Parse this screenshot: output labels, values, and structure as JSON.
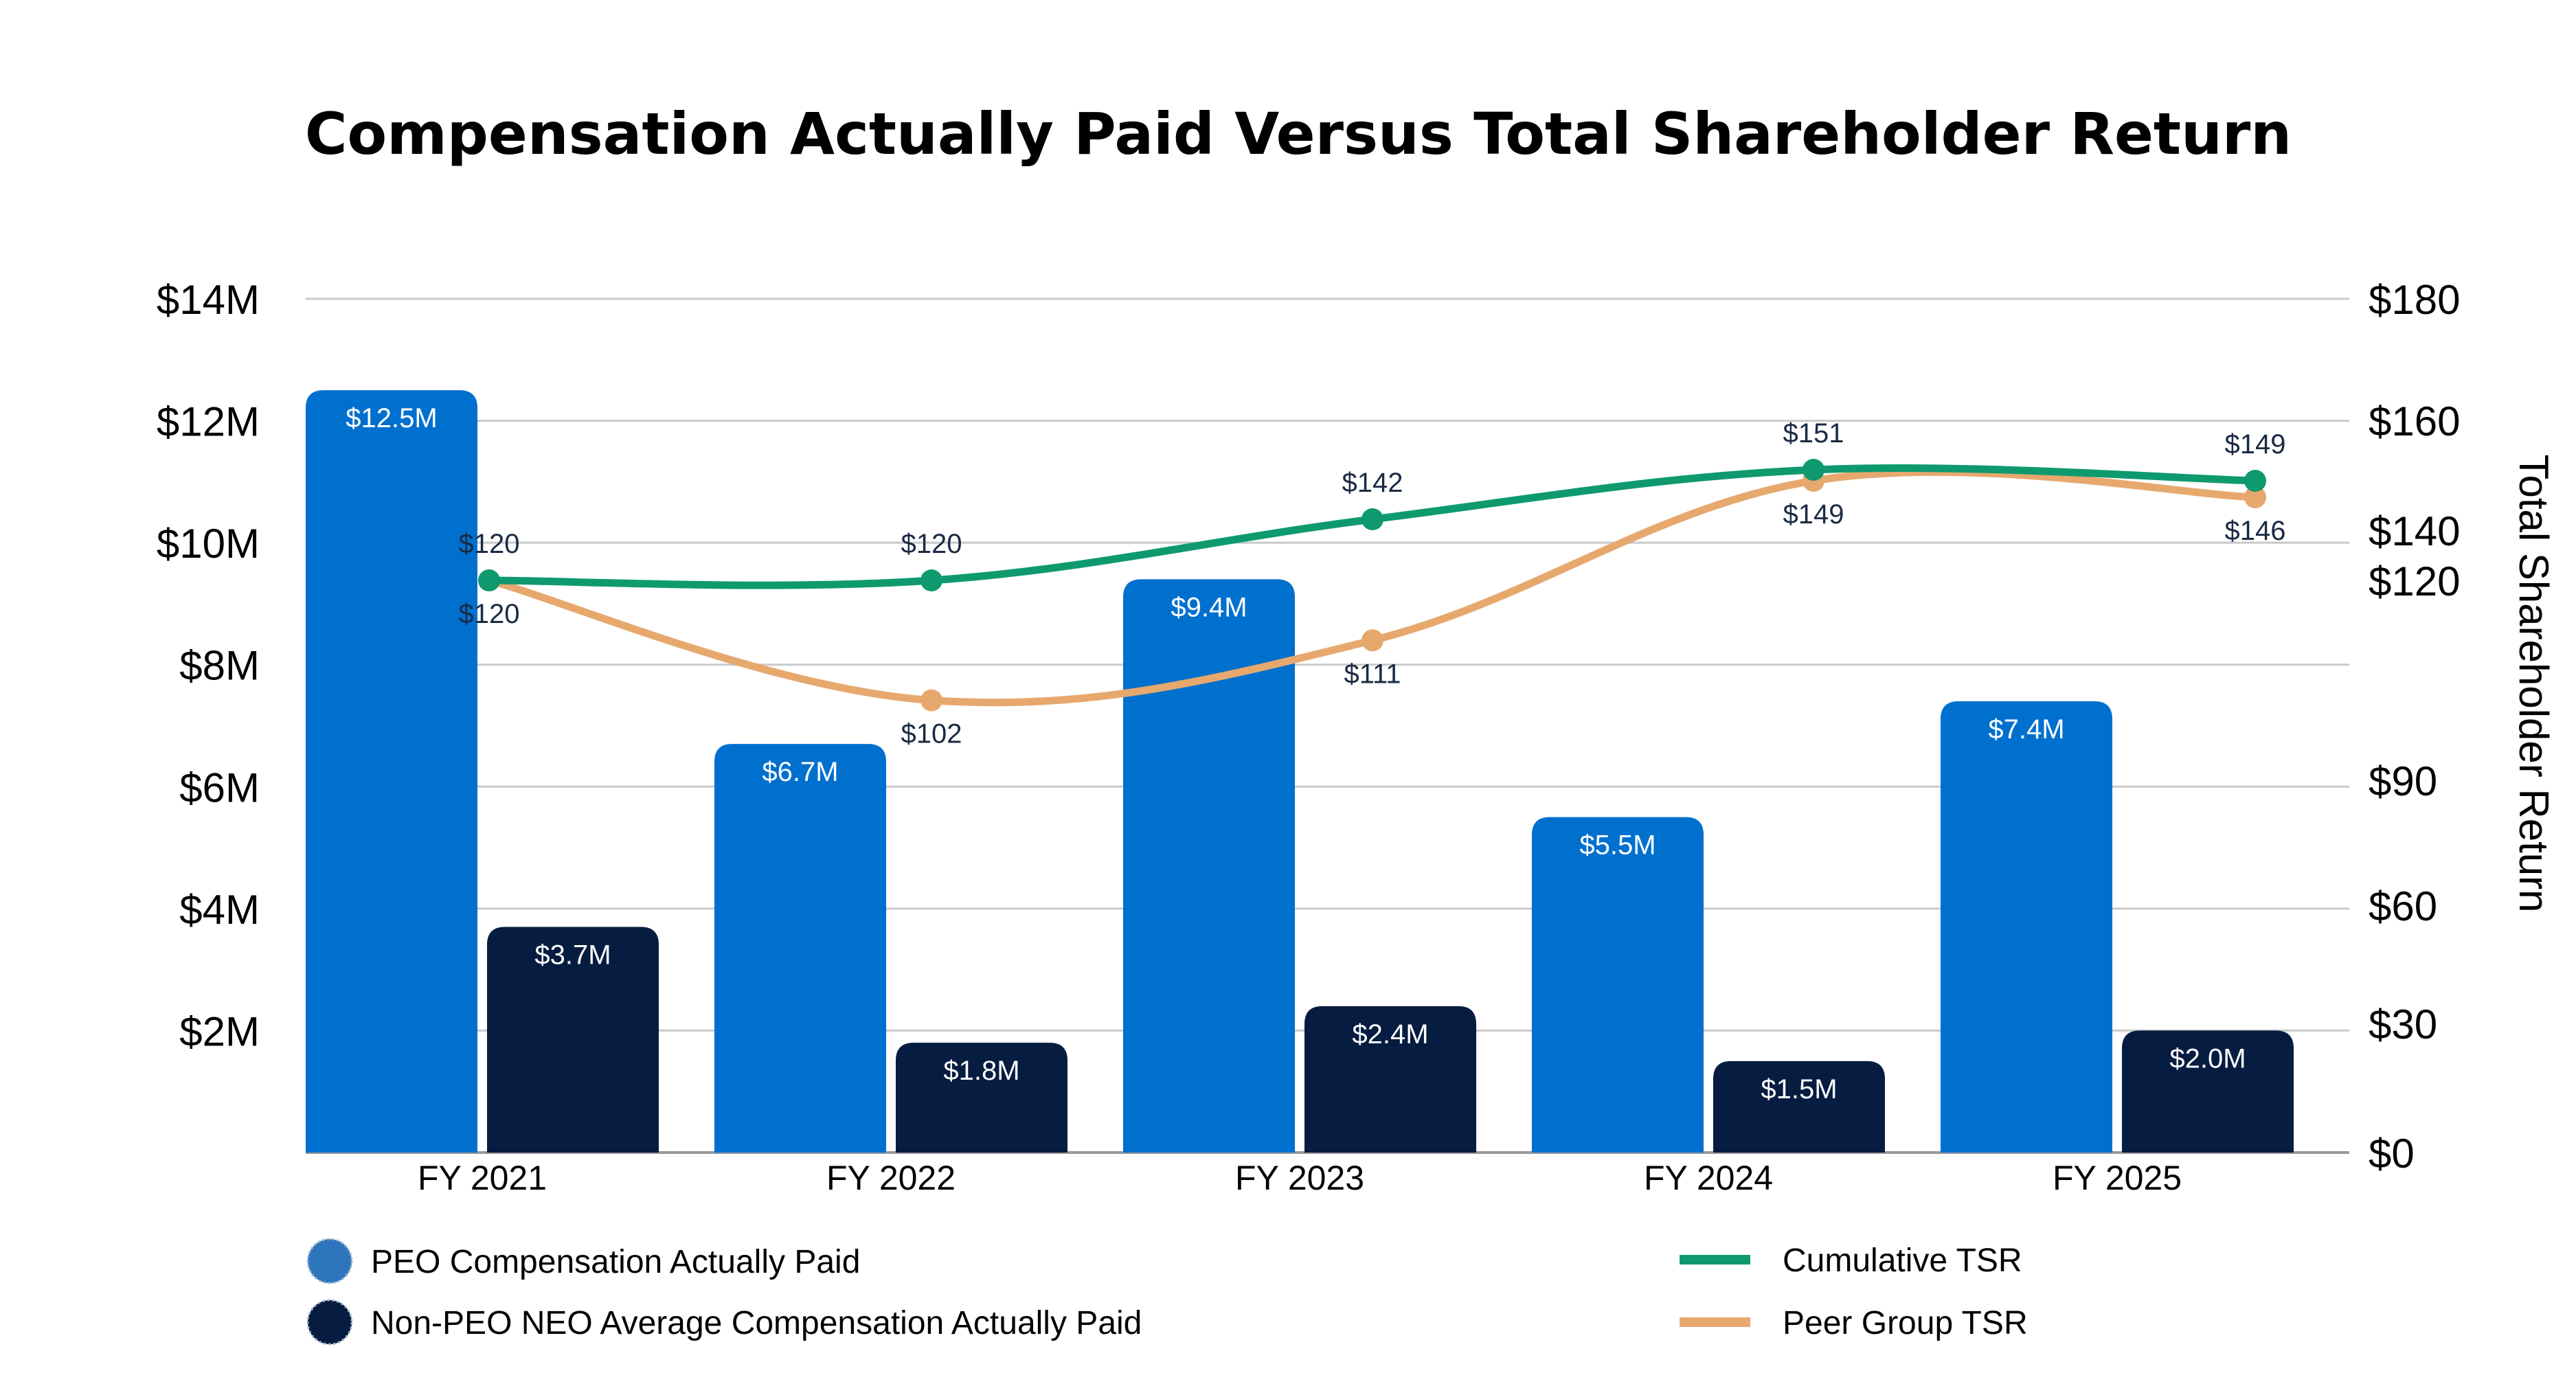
{
  "chart_data": {
    "type": "bar",
    "title": "Compensation Actually Paid Versus Total Shareholder Return",
    "xlabel": "",
    "ylabel": "",
    "y2label": "Total Shareholder Return",
    "categories": [
      "FY 2021",
      "FY 2022",
      "FY 2023",
      "FY 2024",
      "FY 2025"
    ],
    "ylim": [
      0,
      14
    ],
    "y_ticks": [
      {
        "value": 2,
        "label": "$2M"
      },
      {
        "value": 4,
        "label": "$4M"
      },
      {
        "value": 6,
        "label": "$6M"
      },
      {
        "value": 8,
        "label": "$8M"
      },
      {
        "value": 10,
        "label": "$10M"
      },
      {
        "value": 12,
        "label": "$12M"
      },
      {
        "value": 14,
        "label": "$14M"
      }
    ],
    "y2_ticks": [
      {
        "value": 0,
        "label": "$0"
      },
      {
        "value": 30,
        "label": "$30"
      },
      {
        "value": 60,
        "label": "$60"
      },
      {
        "value": 90,
        "label": "$90"
      },
      {
        "value": 120,
        "label": "$120"
      },
      {
        "value": 140,
        "label": "$140"
      },
      {
        "value": 160,
        "label": "$160"
      },
      {
        "value": 180,
        "label": "$180"
      }
    ],
    "grid": true,
    "legend_position": "bottom",
    "bar_series": [
      {
        "name": "PEO Compensation Actually Paid",
        "color": "#0070CF",
        "values": [
          12.5,
          6.7,
          9.4,
          5.5,
          7.4
        ],
        "labels": [
          "$12.5M",
          "$6.7M",
          "$9.4M",
          "$5.5M",
          "$7.4M"
        ]
      },
      {
        "name": "Non-PEO NEO Average Compensation Actually Paid",
        "color": "#061C40",
        "values": [
          3.7,
          1.8,
          2.4,
          1.5,
          2.0
        ],
        "labels": [
          "$3.7M",
          "$1.8M",
          "$2.4M",
          "$1.5M",
          "$2.0M"
        ]
      }
    ],
    "line_series": [
      {
        "name": "Cumulative TSR",
        "color": "#0E9A6E",
        "values": [
          120,
          120,
          142,
          151,
          149
        ],
        "labels": [
          "$120",
          "$120",
          "$142",
          "$151",
          "$149"
        ]
      },
      {
        "name": "Peer Group TSR",
        "color": "#E7A86E",
        "values": [
          120,
          102,
          111,
          149,
          146
        ],
        "labels": [
          "$120",
          "$102",
          "$111",
          "$149",
          "$146"
        ]
      }
    ],
    "legend_marker_colors": [
      "#2F75BE",
      "#061C40"
    ]
  }
}
